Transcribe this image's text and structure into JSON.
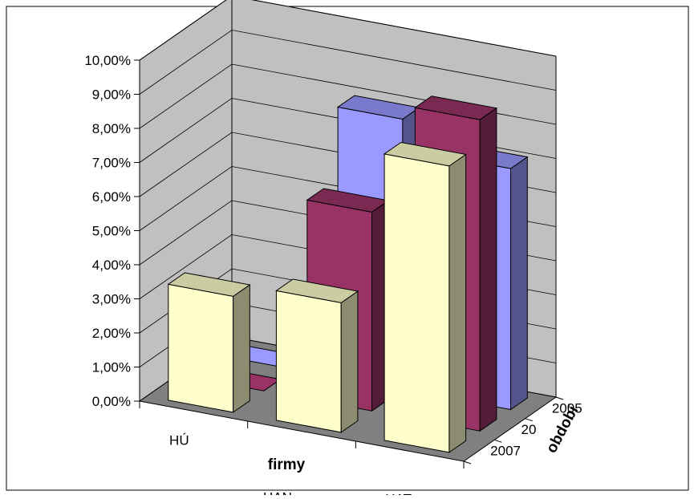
{
  "colors": {
    "series_2005": "#9999ff",
    "series_2006": "#993366",
    "series_2007": "#ffffcc",
    "wall": "#c0c0c0",
    "floor": "#808080"
  },
  "chart_data": {
    "type": "bar",
    "subtype": "3d-column",
    "xlabel": "firmy",
    "zlabel": "období",
    "categories": [
      "HÚ",
      "HAN",
      "HAT"
    ],
    "series": [
      {
        "name": "2005",
        "values": [
          0.0,
          0.0793,
          0.0707
        ]
      },
      {
        "name": "2006",
        "values": [
          0.0,
          0.0583,
          0.0913
        ]
      },
      {
        "name": "2007",
        "values": [
          0.034,
          0.038,
          0.084
        ]
      }
    ],
    "ylim": [
      0,
      0.1
    ],
    "yticks": [
      "0,00%",
      "1,00%",
      "2,00%",
      "3,00%",
      "4,00%",
      "5,00%",
      "6,00%",
      "7,00%",
      "8,00%",
      "9,00%",
      "10,00%"
    ],
    "series_labels_shown": [
      "2005",
      "20",
      "2007"
    ],
    "grid": true,
    "legend": "none"
  }
}
